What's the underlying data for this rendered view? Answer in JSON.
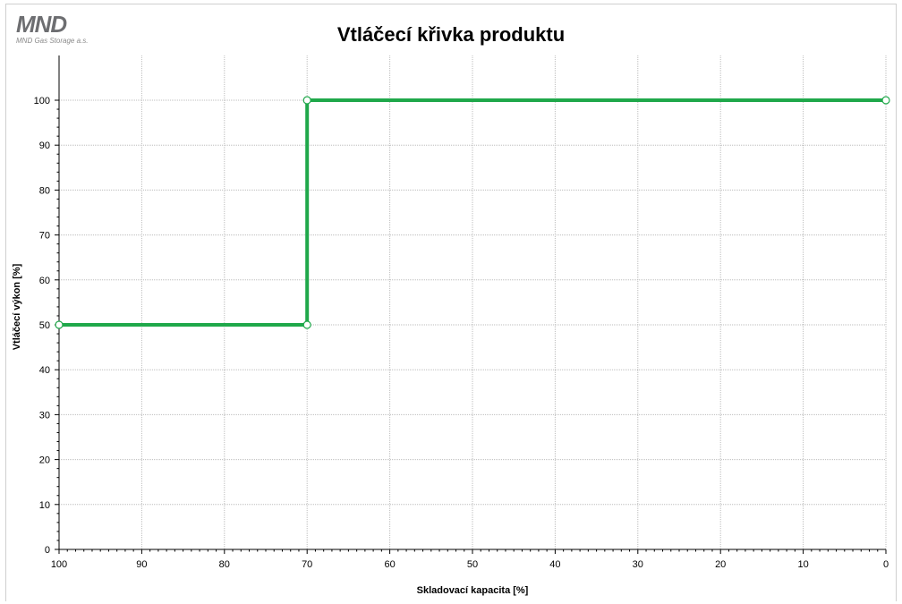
{
  "header": {
    "logo_text": "MND",
    "logo_subtitle": "MND Gas Storage a.s."
  },
  "colors": {
    "series": "#1fa84a",
    "grid": "#bdbdbd",
    "logo_gray": "#6d6e71",
    "logo_accent": "#2bb34a"
  },
  "chart_data": {
    "type": "line",
    "title": "Vtláčecí křivka produktu",
    "xlabel": "Skladovací kapacita [%]",
    "ylabel": "Vtláčecí výkon [%]",
    "xlim": [
      100,
      0
    ],
    "ylim": [
      0,
      100
    ],
    "x_reversed": true,
    "x_ticks": [
      100,
      90,
      80,
      70,
      60,
      50,
      40,
      30,
      20,
      10,
      0
    ],
    "y_ticks": [
      0,
      10,
      20,
      30,
      40,
      50,
      60,
      70,
      80,
      90,
      100
    ],
    "grid": true,
    "series": [
      {
        "points": [
          [
            100,
            50
          ],
          [
            70,
            50
          ],
          [
            70,
            100
          ],
          [
            0,
            100
          ]
        ]
      }
    ]
  }
}
